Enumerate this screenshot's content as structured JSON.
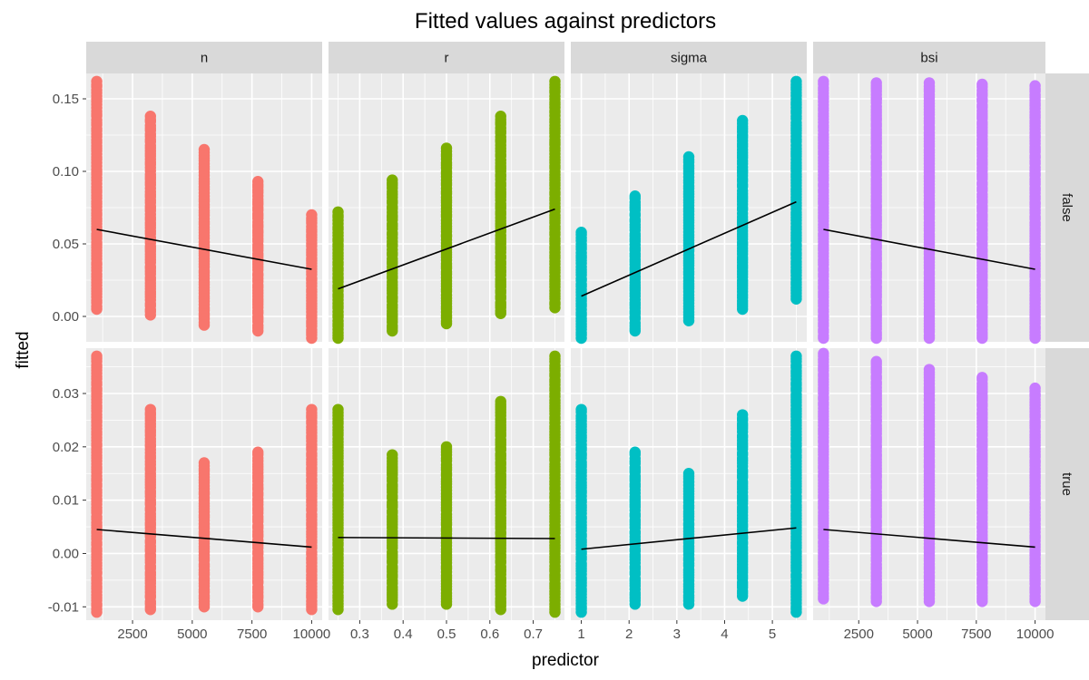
{
  "chart_data": {
    "type": "scatter",
    "title": "Fitted values against predictors",
    "xlabel": "predictor",
    "ylabel": "fitted",
    "columns": [
      {
        "name": "n",
        "color": "#F8766D",
        "xlim": [
          560,
          10440
        ],
        "x_values": [
          1000,
          3250,
          5500,
          7750,
          10000
        ],
        "ticks": [
          2500,
          5000,
          7500,
          10000
        ],
        "tick_labels": [
          "2500",
          "5000",
          "7500",
          "10000"
        ]
      },
      {
        "name": "r",
        "color": "#7CAE00",
        "xlim": [
          0.228,
          0.772
        ],
        "x_values": [
          0.25,
          0.375,
          0.5,
          0.625,
          0.75
        ],
        "ticks": [
          0.3,
          0.4,
          0.5,
          0.6,
          0.7
        ],
        "tick_labels": [
          "0.3",
          "0.4",
          "0.5",
          "0.6",
          "0.7"
        ]
      },
      {
        "name": "sigma",
        "color": "#00BFC4",
        "xlim": [
          0.78,
          5.72
        ],
        "x_values": [
          1,
          2.125,
          3.25,
          4.375,
          5.5
        ],
        "ticks": [
          1,
          2,
          3,
          4,
          5
        ],
        "tick_labels": [
          "1",
          "2",
          "3",
          "4",
          "5"
        ]
      },
      {
        "name": "bsi",
        "color": "#C77CFF",
        "xlim": [
          560,
          10440
        ],
        "x_values": [
          1000,
          3250,
          5500,
          7750,
          10000
        ],
        "ticks": [
          2500,
          5000,
          7500,
          10000
        ],
        "tick_labels": [
          "2500",
          "5000",
          "7500",
          "10000"
        ]
      }
    ],
    "rows": [
      {
        "name": "false",
        "ylim": [
          -0.0175,
          0.1675
        ],
        "ticks": [
          0,
          0.05,
          0.1,
          0.15
        ],
        "tick_labels": [
          "0.00",
          "0.05",
          "0.10",
          "0.15"
        ],
        "panels": [
          {
            "ranges": [
              [
                0.005,
                0.162
              ],
              [
                0.001,
                0.138
              ],
              [
                -0.006,
                0.115
              ],
              [
                -0.01,
                0.093
              ],
              [
                -0.015,
                0.07
              ]
            ],
            "fit": [
              0.06,
              0.0325
            ]
          },
          {
            "ranges": [
              [
                -0.015,
                0.072
              ],
              [
                -0.01,
                0.094
              ],
              [
                -0.005,
                0.116
              ],
              [
                0.002,
                0.138
              ],
              [
                0.006,
                0.162
              ]
            ],
            "fit": [
              0.019,
              0.074
            ]
          },
          {
            "ranges": [
              [
                -0.015,
                0.058
              ],
              [
                -0.01,
                0.083
              ],
              [
                -0.003,
                0.11
              ],
              [
                0.005,
                0.135
              ],
              [
                0.012,
                0.162
              ]
            ],
            "fit": [
              0.014,
              0.079
            ]
          },
          {
            "ranges": [
              [
                -0.015,
                0.162
              ],
              [
                -0.015,
                0.161
              ],
              [
                -0.015,
                0.161
              ],
              [
                -0.015,
                0.16
              ],
              [
                -0.015,
                0.159
              ]
            ],
            "fit": [
              0.06,
              0.0325
            ]
          }
        ]
      },
      {
        "name": "true",
        "ylim": [
          -0.0125,
          0.0385
        ],
        "ticks": [
          -0.01,
          0,
          0.01,
          0.02,
          0.03
        ],
        "tick_labels": [
          "-0.01",
          "0.00",
          "0.01",
          "0.02",
          "0.03"
        ],
        "panels": [
          {
            "ranges": [
              [
                -0.011,
                0.037
              ],
              [
                -0.0105,
                0.027
              ],
              [
                -0.01,
                0.017
              ],
              [
                -0.01,
                0.019
              ],
              [
                -0.0105,
                0.027
              ]
            ],
            "fit": [
              0.0045,
              0.0012
            ]
          },
          {
            "ranges": [
              [
                -0.0105,
                0.027
              ],
              [
                -0.0095,
                0.0185
              ],
              [
                -0.0095,
                0.02
              ],
              [
                -0.0105,
                0.0285
              ],
              [
                -0.011,
                0.037
              ]
            ],
            "fit": [
              0.003,
              0.0028
            ]
          },
          {
            "ranges": [
              [
                -0.011,
                0.027
              ],
              [
                -0.0095,
                0.019
              ],
              [
                -0.0095,
                0.015
              ],
              [
                -0.008,
                0.026
              ],
              [
                -0.011,
                0.037
              ]
            ],
            "fit": [
              0.0008,
              0.0048
            ]
          },
          {
            "ranges": [
              [
                -0.0085,
                0.0375
              ],
              [
                -0.009,
                0.036
              ],
              [
                -0.009,
                0.0345
              ],
              [
                -0.009,
                0.033
              ],
              [
                -0.009,
                0.031
              ]
            ],
            "fit": [
              0.0045,
              0.0012
            ]
          }
        ]
      }
    ]
  }
}
